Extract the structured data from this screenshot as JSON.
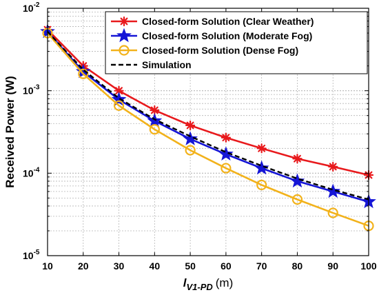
{
  "chart_data": {
    "type": "line",
    "title": "",
    "xlabel": {
      "main": "l",
      "subscript": "V1-PD",
      "unit": "(m)"
    },
    "ylabel": "Received Power (W)",
    "xlim": [
      10,
      100
    ],
    "ylim": [
      1e-05,
      0.01
    ],
    "yscale": "log",
    "grid": true,
    "legend_position": "top-right",
    "x": [
      10,
      20,
      30,
      40,
      50,
      60,
      70,
      80,
      90,
      100
    ],
    "x_tick_labels": [
      "10",
      "20",
      "30",
      "40",
      "50",
      "60",
      "70",
      "80",
      "90",
      "100"
    ],
    "y_tick_labels": [
      {
        "base": "10",
        "exp": "-5"
      },
      {
        "base": "10",
        "exp": "-4"
      },
      {
        "base": "10",
        "exp": "-3"
      },
      {
        "base": "10",
        "exp": "-2"
      }
    ],
    "series": [
      {
        "name": "Closed-form Solution (Clear Weather)",
        "color": "#e8191c",
        "marker": "asterisk",
        "values": [
          0.0055,
          0.002,
          0.001,
          0.00058,
          0.00038,
          0.00027,
          0.0002,
          0.00015,
          0.00012,
          9.5e-05
        ]
      },
      {
        "name": "Closed-form Solution (Moderate Fog)",
        "color": "#1515d6",
        "marker": "star",
        "values": [
          0.0052,
          0.0017,
          0.00078,
          0.00043,
          0.00026,
          0.00017,
          0.000115,
          8e-05,
          6e-05,
          4.5e-05
        ]
      },
      {
        "name": "Closed-form Solution (Dense Fog)",
        "color": "#f2b21b",
        "marker": "circle",
        "values": [
          0.005,
          0.0016,
          0.00066,
          0.00034,
          0.00019,
          0.000115,
          7.2e-05,
          4.8e-05,
          3.3e-05,
          2.3e-05
        ]
      },
      {
        "name": "Simulation",
        "color": "#000000",
        "marker": "none",
        "dashed": true,
        "values": [
          0.0052,
          0.0018,
          0.00081,
          0.00045,
          0.00028,
          0.00018,
          0.000123,
          8.6e-05,
          6.3e-05,
          4.8e-05
        ]
      }
    ]
  }
}
